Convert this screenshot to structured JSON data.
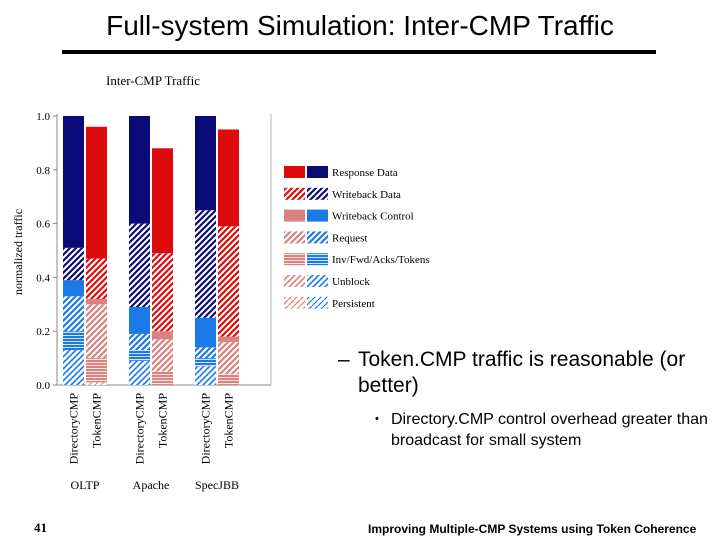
{
  "slide": {
    "title": "Full-system Simulation: Inter-CMP Traffic",
    "bullet1": "Token.CMP traffic is reasonable (or better)",
    "bullet2": "Directory.CMP control overhead greater than broadcast for small system",
    "page_number": "41",
    "footer": "Improving Multiple-CMP Systems using Token Coherence"
  },
  "colors": {
    "directory_dark": "#0a0a78",
    "directory_light": "#1a7ae8",
    "token_dark": "#dd0b0b",
    "token_light": "#dc8080"
  },
  "chart_data": {
    "type": "bar",
    "stacked": true,
    "title": "Inter-CMP Traffic",
    "ylabel": "normalized traffic",
    "xlabel": "",
    "ylim": [
      0,
      1.0
    ],
    "yticks": [
      "0.0",
      "0.2",
      "0.4",
      "0.6",
      "0.8",
      "1.0"
    ],
    "grid": false,
    "legend_position": "right",
    "groups": [
      {
        "name": "OLTP",
        "bars": [
          {
            "label": "DirectoryCMP",
            "protocol": "directory",
            "values": {
              "Persistent": 0,
              "Unblock": 0.13,
              "Inv/Fwd/Acks/Tokens": 0.07,
              "Request": 0.13,
              "Writeback Control": 0.06,
              "Writeback Data": 0.12,
              "Response Data": 0.49
            }
          },
          {
            "label": "TokenCMP",
            "protocol": "token",
            "values": {
              "Persistent": 0.01,
              "Unblock": 0,
              "Inv/Fwd/Acks/Tokens": 0.09,
              "Request": 0.2,
              "Writeback Control": 0.02,
              "Writeback Data": 0.15,
              "Response Data": 0.49
            }
          }
        ]
      },
      {
        "name": "Apache",
        "bars": [
          {
            "label": "DirectoryCMP",
            "protocol": "directory",
            "values": {
              "Persistent": 0,
              "Unblock": 0.09,
              "Inv/Fwd/Acks/Tokens": 0.04,
              "Request": 0.06,
              "Writeback Control": 0.1,
              "Writeback Data": 0.31,
              "Response Data": 0.4
            }
          },
          {
            "label": "TokenCMP",
            "protocol": "token",
            "values": {
              "Persistent": 0.0,
              "Unblock": 0,
              "Inv/Fwd/Acks/Tokens": 0.05,
              "Request": 0.12,
              "Writeback Control": 0.03,
              "Writeback Data": 0.29,
              "Response Data": 0.39
            }
          }
        ]
      },
      {
        "name": "SpecJBB",
        "bars": [
          {
            "label": "DirectoryCMP",
            "protocol": "directory",
            "values": {
              "Persistent": 0,
              "Unblock": 0.07,
              "Inv/Fwd/Acks/Tokens": 0.03,
              "Request": 0.04,
              "Writeback Control": 0.11,
              "Writeback Data": 0.4,
              "Response Data": 0.35
            }
          },
          {
            "label": "TokenCMP",
            "protocol": "token",
            "values": {
              "Persistent": 0.0,
              "Unblock": 0,
              "Inv/Fwd/Acks/Tokens": 0.04,
              "Request": 0.12,
              "Writeback Control": 0.02,
              "Writeback Data": 0.41,
              "Response Data": 0.36
            }
          }
        ]
      }
    ],
    "categories": [
      "Response Data",
      "Writeback Data",
      "Writeback Control",
      "Request",
      "Inv/Fwd/Acks/Tokens",
      "Unblock",
      "Persistent"
    ],
    "stack_order": [
      "Persistent",
      "Unblock",
      "Inv/Fwd/Acks/Tokens",
      "Request",
      "Writeback Control",
      "Writeback Data",
      "Response Data"
    ]
  }
}
